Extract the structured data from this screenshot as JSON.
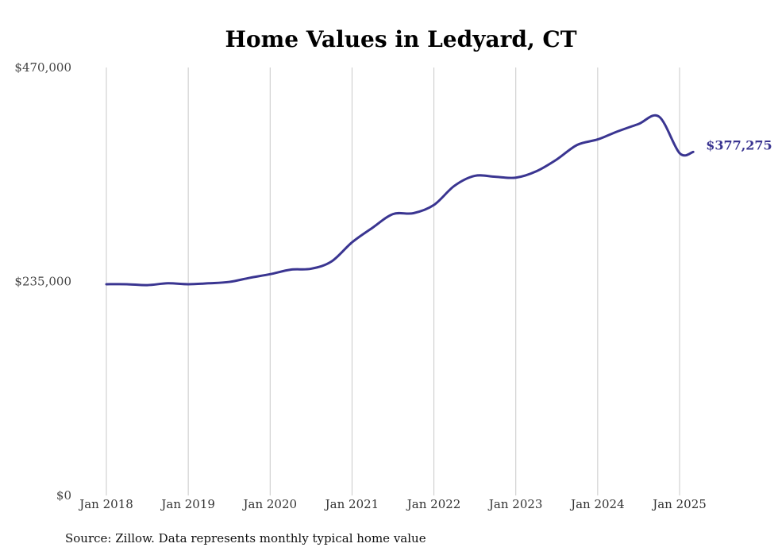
{
  "chart_data": {
    "type": "line",
    "title": "Home Values in Ledyard, CT",
    "xlabel": "",
    "ylabel": "",
    "ylim": [
      0,
      470000
    ],
    "yticks": [
      {
        "value": 0,
        "label": "$0"
      },
      {
        "value": 235000,
        "label": "$235,000"
      },
      {
        "value": 470000,
        "label": "$470,000"
      }
    ],
    "xlim": [
      2018.0,
      2025.25
    ],
    "xticks": [
      {
        "value": 2018,
        "label": "Jan 2018"
      },
      {
        "value": 2019,
        "label": "Jan 2019"
      },
      {
        "value": 2020,
        "label": "Jan 2020"
      },
      {
        "value": 2021,
        "label": "Jan 2021"
      },
      {
        "value": 2022,
        "label": "Jan 2022"
      },
      {
        "value": 2023,
        "label": "Jan 2023"
      },
      {
        "value": 2024,
        "label": "Jan 2024"
      },
      {
        "value": 2025,
        "label": "Jan 2025"
      }
    ],
    "grid": "vertical",
    "legend": "none",
    "series": [
      {
        "color": "#3a3591",
        "x": [
          "2018-01",
          "2018-04",
          "2018-07",
          "2018-10",
          "2019-01",
          "2019-04",
          "2019-07",
          "2019-10",
          "2020-01",
          "2020-04",
          "2020-07",
          "2020-10",
          "2021-01",
          "2021-04",
          "2021-07",
          "2021-10",
          "2022-01",
          "2022-04",
          "2022-07",
          "2022-10",
          "2023-01",
          "2023-04",
          "2023-07",
          "2023-10",
          "2024-01",
          "2024-04",
          "2024-07",
          "2024-10",
          "2025-01",
          "2025-03"
        ],
        "values": [
          232000,
          232000,
          231000,
          233000,
          232000,
          233000,
          234500,
          239000,
          243000,
          248000,
          249000,
          257000,
          278000,
          294000,
          309000,
          310000,
          319000,
          340000,
          351000,
          350000,
          349000,
          356000,
          369000,
          385000,
          391000,
          400000,
          408000,
          416000,
          376000,
          377275
        ],
        "end_label": "$377,275"
      }
    ]
  },
  "source_note": "Source: Zillow. Data represents monthly typical home value"
}
